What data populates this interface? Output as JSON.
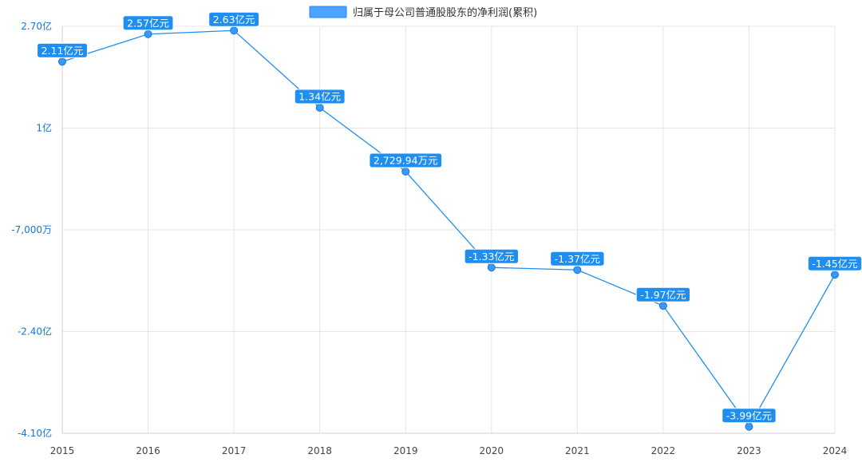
{
  "chart_data": {
    "type": "line",
    "legend": {
      "label": "归属于母公司普通股股东的净利润(累积)",
      "placement": "top-center"
    },
    "x": [
      "2015",
      "2016",
      "2017",
      "2018",
      "2019",
      "2020",
      "2021",
      "2022",
      "2023",
      "2024"
    ],
    "series": [
      {
        "name": "归属于母公司普通股股东的净利润(累积)",
        "unit": "亿元",
        "values": [
          2.11,
          2.57,
          2.63,
          1.34,
          0.272994,
          -1.33,
          -1.37,
          -1.97,
          -3.99,
          -1.45
        ],
        "labels": [
          "2.11亿元",
          "2.57亿元",
          "2.63亿元",
          "1.34亿元",
          "2,729.94万元",
          "-1.33亿元",
          "-1.37亿元",
          "-1.97亿元",
          "-3.99亿元",
          "-1.45亿元"
        ]
      }
    ],
    "y_axis": {
      "ylim": [
        -4.1,
        2.7
      ],
      "ticks": [
        {
          "value": 2.7,
          "label": "2.70亿"
        },
        {
          "value": 1.0,
          "label": "1亿"
        },
        {
          "value": -0.7,
          "label": "-7,000万"
        },
        {
          "value": -2.4,
          "label": "-2.40亿"
        },
        {
          "value": -4.1,
          "label": "-4.10亿"
        }
      ]
    },
    "grid": true,
    "colors": {
      "series": "#1f8ef1",
      "label_bg": "#1f8ef1",
      "ytick": "#1a73d9"
    }
  }
}
